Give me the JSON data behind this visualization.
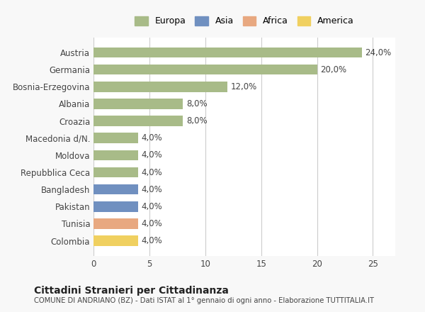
{
  "categories": [
    "Colombia",
    "Tunisia",
    "Pakistan",
    "Bangladesh",
    "Repubblica Ceca",
    "Moldova",
    "Macedonia d/N.",
    "Croazia",
    "Albania",
    "Bosnia-Erzegovina",
    "Germania",
    "Austria"
  ],
  "values": [
    4.0,
    4.0,
    4.0,
    4.0,
    4.0,
    4.0,
    4.0,
    8.0,
    8.0,
    12.0,
    20.0,
    24.0
  ],
  "colors": [
    "#f0d060",
    "#e8a880",
    "#7090c0",
    "#7090c0",
    "#a8bb88",
    "#a8bb88",
    "#a8bb88",
    "#a8bb88",
    "#a8bb88",
    "#a8bb88",
    "#a8bb88",
    "#a8bb88"
  ],
  "continent_colors": {
    "Europa": "#a8bb88",
    "Asia": "#7090c0",
    "Africa": "#e8a880",
    "America": "#f0d060"
  },
  "continents": [
    "Europa",
    "Asia",
    "Africa",
    "America"
  ],
  "labels": [
    "4,0%",
    "4,0%",
    "4,0%",
    "4,0%",
    "4,0%",
    "4,0%",
    "4,0%",
    "8,0%",
    "8,0%",
    "12,0%",
    "20,0%",
    "24,0%"
  ],
  "xlim": [
    0,
    27
  ],
  "xticks": [
    0,
    5,
    10,
    15,
    20,
    25
  ],
  "title": "Cittadini Stranieri per Cittadinanza",
  "subtitle": "COMUNE DI ANDRIANO (BZ) - Dati ISTAT al 1° gennaio di ogni anno - Elaborazione TUTTITALIA.IT",
  "background_color": "#f8f8f8",
  "bar_background": "#ffffff",
  "grid_color": "#cccccc"
}
